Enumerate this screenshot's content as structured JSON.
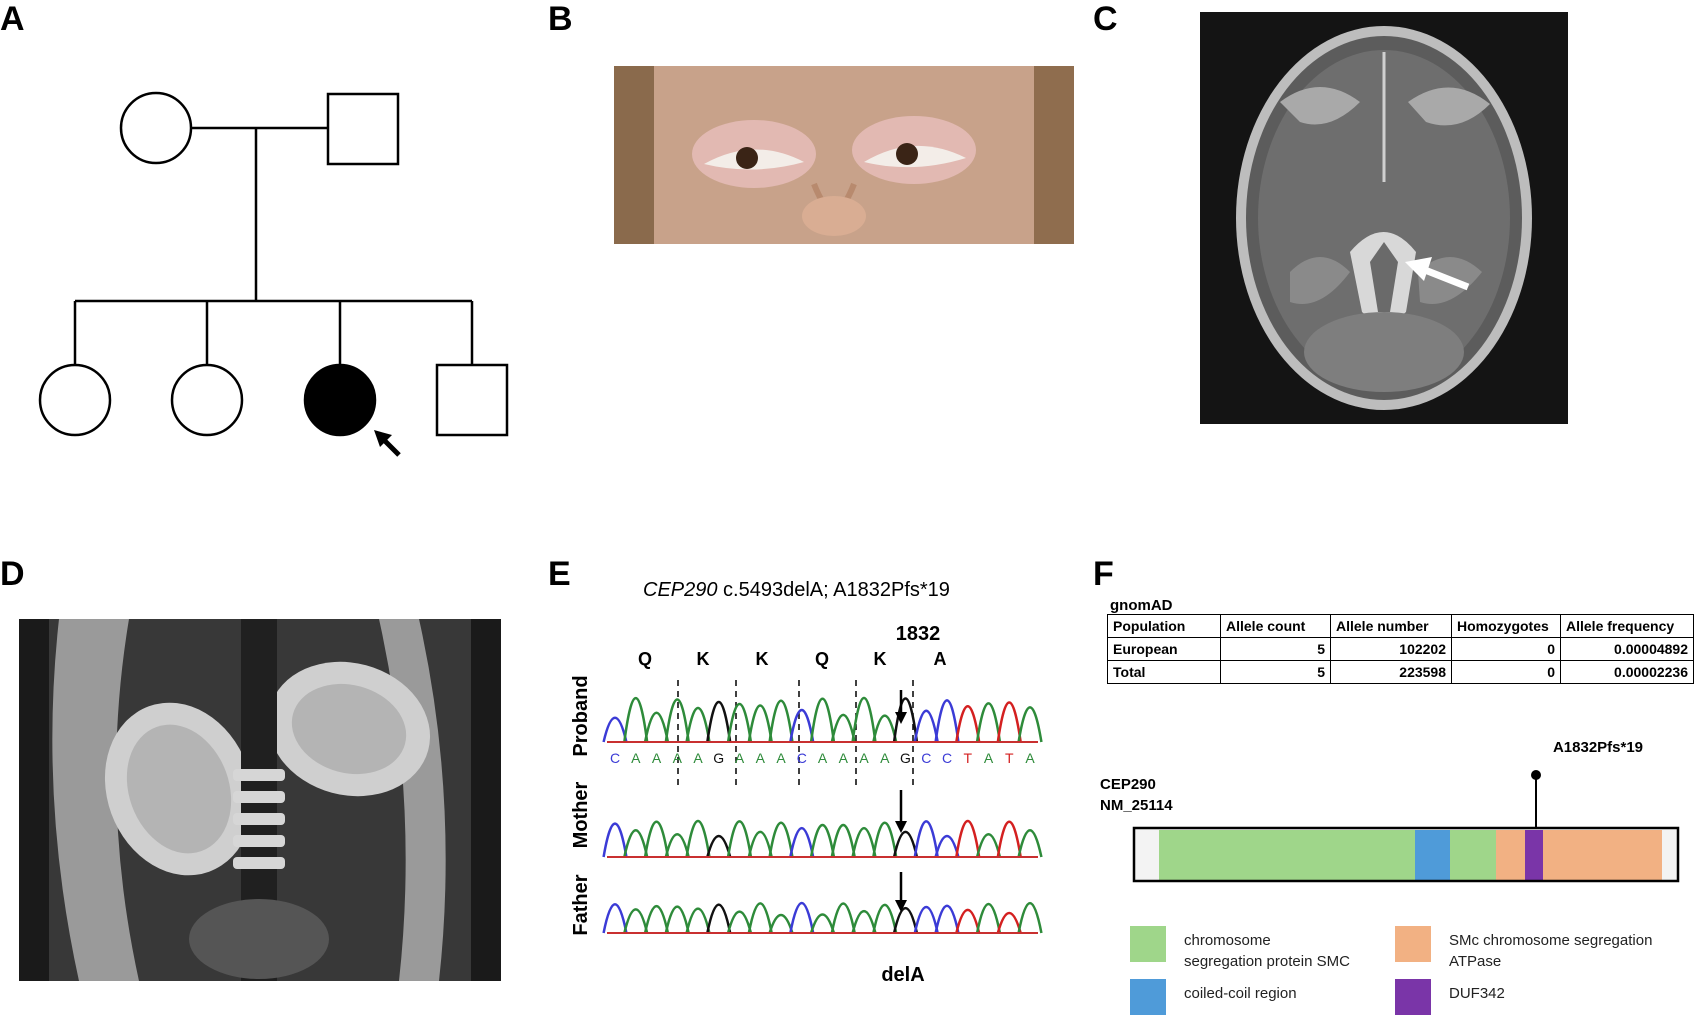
{
  "panels": {
    "A": "A",
    "B": "B",
    "C": "C",
    "D": "D",
    "E": "E",
    "F": "F"
  },
  "panelE": {
    "title_gene": "CEP290",
    "title_rest": " c.5493delA; A1832Pfs*19",
    "position_label": "1832",
    "amino_acids": [
      "Q",
      "K",
      "K",
      "Q",
      "K",
      "A"
    ],
    "sequence": [
      "C",
      "A",
      "A",
      "A",
      "A",
      "G",
      "A",
      "A",
      "A",
      "C",
      "A",
      "A",
      "A",
      "A",
      "G",
      "C",
      "C",
      "T",
      "A",
      "T",
      "A"
    ],
    "tracks": [
      "Proband",
      "Mother",
      "Father"
    ],
    "deletion_label": "delA",
    "colors": {
      "A": "#2e8b3a",
      "C": "#3b3bd6",
      "G": "#111111",
      "T": "#d42020"
    }
  },
  "panelF": {
    "gnomad_title": "gnomAD",
    "table": {
      "headers": [
        "Population",
        "Allele count",
        "Allele number",
        "Homozygotes",
        "Allele frequency"
      ],
      "rows": [
        [
          "European",
          "5",
          "102202",
          "0",
          "0.00004892"
        ],
        [
          "Total",
          "5",
          "223598",
          "0",
          "0.00002236"
        ]
      ]
    },
    "gene_name": "CEP290",
    "transcript": "NM_25114",
    "variant_label": "A1832Pfs*19",
    "domains": [
      {
        "name": "chromosome segregation protein SMC",
        "color": "#9fd68a"
      },
      {
        "name": "coiled-coil region",
        "color": "#4f9bd9"
      },
      {
        "name": "SMc chromosome segregation ATPase",
        "color": "#f2b183"
      },
      {
        "name": "DUF342",
        "color": "#7a35a8"
      }
    ],
    "legend_lines": {
      "smc_1": "chromosome",
      "smc_2": "segregation protein SMC",
      "coil": "coiled-coil region",
      "atp_1": "SMc chromosome segregation",
      "atp_2": "ATPase",
      "duf": "DUF342"
    }
  }
}
